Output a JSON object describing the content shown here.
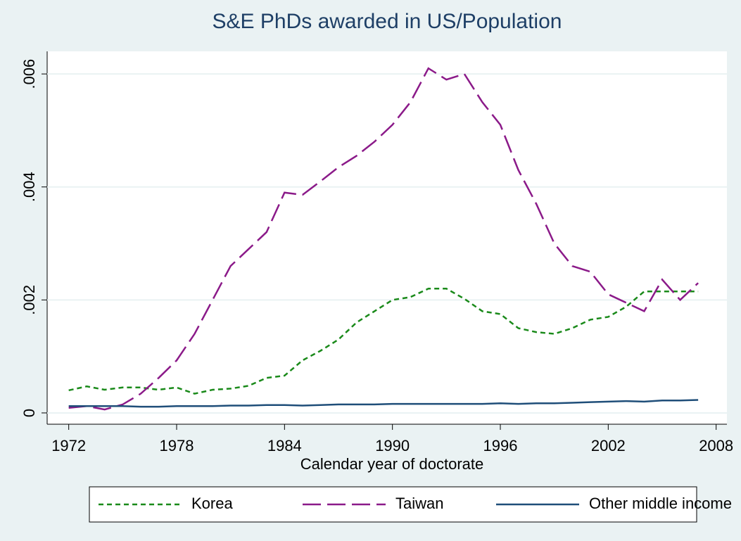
{
  "chart_data": {
    "type": "line",
    "title": "S&E PhDs awarded in US/Population",
    "x_label": "Calendar year of doctorate",
    "x": [
      1972,
      1973,
      1974,
      1975,
      1976,
      1977,
      1978,
      1979,
      1980,
      1981,
      1982,
      1983,
      1984,
      1985,
      1986,
      1987,
      1988,
      1989,
      1990,
      1991,
      1992,
      1993,
      1994,
      1995,
      1996,
      1997,
      1998,
      1999,
      2000,
      2001,
      2002,
      2003,
      2004,
      2005,
      2006,
      2007
    ],
    "series": [
      {
        "name": "Korea",
        "color": "#1a8a1a",
        "dash": "short",
        "values": [
          0.0004,
          0.00047,
          0.00041,
          0.00045,
          0.00045,
          0.00041,
          0.00045,
          0.00034,
          0.00041,
          0.00043,
          0.00048,
          0.00062,
          0.00066,
          0.00093,
          0.0011,
          0.0013,
          0.0016,
          0.0018,
          0.002,
          0.00205,
          0.0022,
          0.0022,
          0.00202,
          0.0018,
          0.00175,
          0.0015,
          0.00143,
          0.0014,
          0.0015,
          0.00165,
          0.0017,
          0.00188,
          0.00215,
          0.00215,
          0.00215,
          0.00215
        ]
      },
      {
        "name": "Taiwan",
        "color": "#8b1a89",
        "dash": "long",
        "values": [
          9e-05,
          0.00012,
          6e-05,
          0.00015,
          0.00034,
          0.00062,
          0.00093,
          0.0014,
          0.002,
          0.0026,
          0.0029,
          0.0032,
          0.0039,
          0.00386,
          0.0041,
          0.00435,
          0.00455,
          0.0048,
          0.0051,
          0.0055,
          0.0061,
          0.0059,
          0.006,
          0.0055,
          0.0051,
          0.0043,
          0.0037,
          0.003,
          0.0026,
          0.0025,
          0.0021,
          0.00195,
          0.0018,
          0.00236,
          0.002,
          0.0023
        ]
      },
      {
        "name": "Other middle income",
        "color": "#1f4e79",
        "dash": "solid",
        "values": [
          0.00012,
          0.00012,
          0.00012,
          0.00012,
          0.00011,
          0.00011,
          0.00012,
          0.00012,
          0.00012,
          0.00013,
          0.00013,
          0.00014,
          0.00014,
          0.00013,
          0.00014,
          0.00015,
          0.00015,
          0.00015,
          0.00016,
          0.00016,
          0.00016,
          0.00016,
          0.00016,
          0.00016,
          0.00017,
          0.00016,
          0.00017,
          0.00017,
          0.00018,
          0.00019,
          0.0002,
          0.00021,
          0.0002,
          0.00022,
          0.00022,
          0.00023
        ]
      }
    ],
    "xlim": [
      1970.8,
      2008.6
    ],
    "xticks": [
      1972,
      1978,
      1984,
      1990,
      1996,
      2002,
      2008
    ],
    "ylim": [
      -0.0002,
      0.0064
    ],
    "yticks": [
      0,
      {
        "value": 0.002,
        "label": ".002"
      },
      {
        "value": 0.004,
        "label": ".004"
      },
      {
        "value": 0.006,
        "label": ".006"
      }
    ],
    "grid": true,
    "legend": "bottom"
  }
}
